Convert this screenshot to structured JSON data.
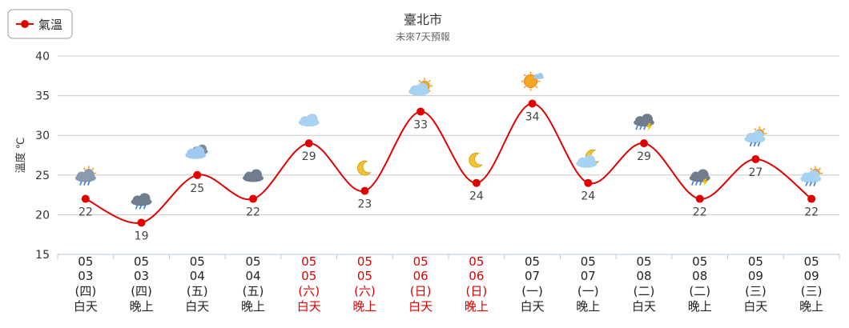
{
  "chart_data": {
    "type": "line",
    "title": "臺北市",
    "subtitle": "未來7天預報",
    "ylabel": "溫度 ℃",
    "ylim": [
      15,
      40
    ],
    "yticks": [
      15,
      20,
      25,
      30,
      35,
      40
    ],
    "grid": true,
    "legend_position": "top-left",
    "categories": [
      {
        "month": "05",
        "day": "03",
        "weekday": "(四)",
        "period": "白天",
        "weekend": false,
        "icon": "thunder-rain-sun-icon"
      },
      {
        "month": "05",
        "day": "03",
        "weekday": "(四)",
        "period": "晚上",
        "weekend": false,
        "icon": "dark-cloud-rain-icon"
      },
      {
        "month": "05",
        "day": "04",
        "weekday": "(五)",
        "period": "白天",
        "weekend": false,
        "icon": "cloudy-icon"
      },
      {
        "month": "05",
        "day": "04",
        "weekday": "(五)",
        "period": "晚上",
        "weekend": false,
        "icon": "dark-cloud-icon"
      },
      {
        "month": "05",
        "day": "05",
        "weekday": "(六)",
        "period": "白天",
        "weekend": true,
        "icon": "cloud-icon"
      },
      {
        "month": "05",
        "day": "05",
        "weekday": "(六)",
        "period": "晚上",
        "weekend": true,
        "icon": "moon-icon"
      },
      {
        "month": "05",
        "day": "06",
        "weekday": "(日)",
        "period": "白天",
        "weekend": true,
        "icon": "partly-sunny-icon"
      },
      {
        "month": "05",
        "day": "06",
        "weekday": "(日)",
        "period": "晚上",
        "weekend": true,
        "icon": "moon-icon"
      },
      {
        "month": "05",
        "day": "07",
        "weekday": "(一)",
        "period": "白天",
        "weekend": false,
        "icon": "sunny-icon"
      },
      {
        "month": "05",
        "day": "07",
        "weekday": "(一)",
        "period": "晚上",
        "weekend": false,
        "icon": "moon-cloud-icon"
      },
      {
        "month": "05",
        "day": "08",
        "weekday": "(二)",
        "period": "白天",
        "weekend": false,
        "icon": "thunder-rain-icon"
      },
      {
        "month": "05",
        "day": "08",
        "weekday": "(二)",
        "period": "晚上",
        "weekend": false,
        "icon": "thunder-rain-icon"
      },
      {
        "month": "05",
        "day": "09",
        "weekday": "(三)",
        "period": "白天",
        "weekend": false,
        "icon": "sun-shower-icon"
      },
      {
        "month": "05",
        "day": "09",
        "weekday": "(三)",
        "period": "晚上",
        "weekend": false,
        "icon": "sun-shower-icon"
      }
    ],
    "series": [
      {
        "name": "氣溫",
        "color": "#e00000",
        "values": [
          22,
          19,
          25,
          22,
          29,
          23,
          33,
          24,
          34,
          24,
          29,
          22,
          27,
          22
        ]
      }
    ]
  },
  "colors": {
    "line": "#e00000",
    "weekday_text": "#222222",
    "weekend_text": "#e00000",
    "grid": "#c8c8c8",
    "axis_label": "#333333",
    "subtitle": "#666666"
  }
}
